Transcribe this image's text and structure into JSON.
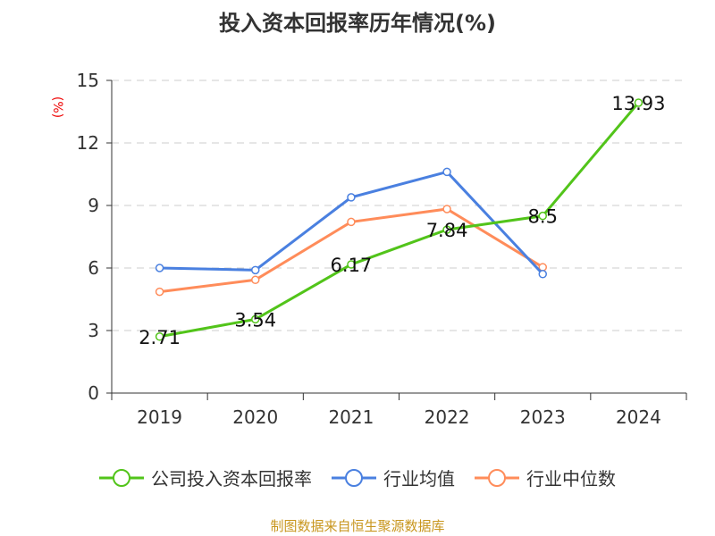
{
  "chart_data": {
    "type": "line",
    "title": "投入资本回报率历年情况(%)",
    "ylabel": "(%)",
    "categories": [
      "2019",
      "2020",
      "2021",
      "2022",
      "2023",
      "2024"
    ],
    "ylim": [
      0,
      15
    ],
    "yticks": [
      "0",
      "3",
      "6",
      "9",
      "12",
      "15"
    ],
    "grid": true,
    "legend_position": "bottom",
    "series": [
      {
        "name": "公司投入资本回报率",
        "color": "#52c41a",
        "values": [
          2.71,
          3.54,
          6.17,
          7.84,
          8.5,
          13.93
        ],
        "labels": [
          "2.71",
          "3.54",
          "6.17",
          "7.84",
          "8.5",
          "13.93"
        ]
      },
      {
        "name": "行业均值",
        "color": "#4a80e0",
        "values": [
          6.0,
          5.9,
          9.39,
          10.61,
          5.71,
          null
        ]
      },
      {
        "name": "行业中位数",
        "color": "#ff8c5a",
        "values": [
          4.86,
          5.43,
          8.21,
          8.83,
          6.04,
          null
        ]
      }
    ]
  },
  "source": "制图数据来自恒生聚源数据库"
}
